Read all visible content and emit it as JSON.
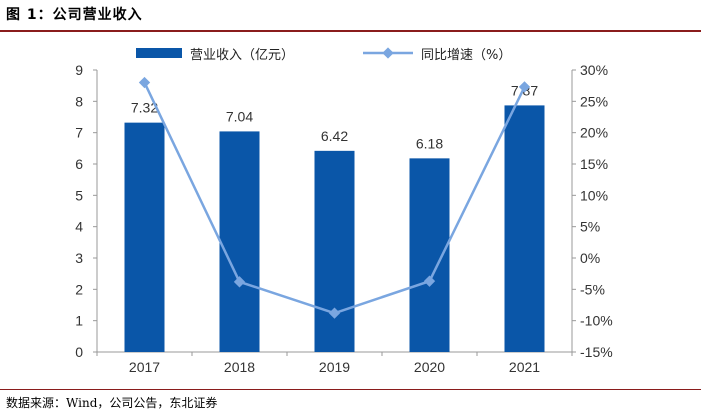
{
  "figure": {
    "title": "图 1：公司营业收入",
    "source": "数据来源：Wind，公司公告，东北证券"
  },
  "colors": {
    "bar": "#0a56a8",
    "line": "#7aa6e0",
    "rule": "#8a1c1c"
  },
  "chart_data": {
    "type": "bar",
    "categories": [
      "2017",
      "2018",
      "2019",
      "2020",
      "2021"
    ],
    "series": [
      {
        "name": "营业收入（亿元）",
        "type": "bar",
        "axis": "left",
        "values": [
          7.32,
          7.04,
          6.42,
          6.18,
          7.87
        ],
        "labels": [
          "7.32",
          "7.04",
          "6.42",
          "6.18",
          "7.87"
        ]
      },
      {
        "name": "同比增速（%）",
        "type": "line",
        "axis": "right",
        "values": [
          28.0,
          -3.8,
          -8.8,
          -3.7,
          27.3
        ]
      }
    ],
    "left_axis": {
      "ylim": [
        0,
        9
      ],
      "ticks": [
        "0",
        "1",
        "2",
        "3",
        "4",
        "5",
        "6",
        "7",
        "8",
        "9"
      ]
    },
    "right_axis": {
      "ylim": [
        -15,
        30
      ],
      "ticks": [
        "-15%",
        "-10%",
        "-5%",
        "0%",
        "5%",
        "10%",
        "15%",
        "20%",
        "25%",
        "30%"
      ]
    },
    "legend_position": "top",
    "grid": false
  }
}
